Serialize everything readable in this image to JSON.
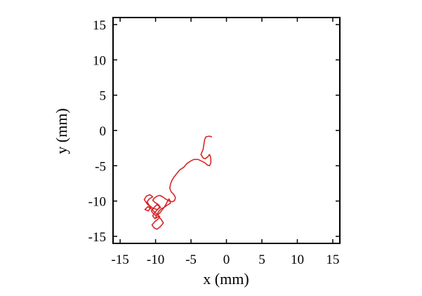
{
  "chart_data": {
    "type": "line",
    "xlabel": "x (mm)",
    "ylabel": "y (mm)",
    "xlim": [
      -16,
      16
    ],
    "ylim": [
      -16,
      16
    ],
    "xticks": [
      -15,
      -10,
      -5,
      0,
      5,
      10,
      15
    ],
    "yticks": [
      -15,
      -10,
      -5,
      0,
      5,
      10,
      15
    ],
    "xtick_labels": [
      "-15",
      "-10",
      "-5",
      "0",
      "5",
      "10",
      "15"
    ],
    "ytick_labels": [
      "-15",
      "-10",
      "-5",
      "0",
      "5",
      "10",
      "15"
    ],
    "grid": false,
    "legend": "none",
    "series": [
      {
        "color": "#d62728",
        "x": [
          -2.1,
          -2.4,
          -2.9,
          -3.1,
          -3.2,
          -3.3,
          -3.6,
          -3.3,
          -3.0,
          -2.6,
          -2.4,
          -2.3,
          -2.2,
          -2.2,
          -2.4,
          -2.7,
          -3.0,
          -3.6,
          -4.0,
          -4.6,
          -5.0,
          -5.6,
          -6.0,
          -6.6,
          -7.0,
          -7.4,
          -7.7,
          -7.9,
          -8.0,
          -7.8,
          -7.4,
          -7.2,
          -7.3,
          -7.6,
          -8.1,
          -8.6,
          -9.0,
          -9.4,
          -9.8,
          -10.2,
          -10.4,
          -10.1,
          -9.6,
          -9.3,
          -9.8,
          -10.4,
          -10.9,
          -11.2,
          -10.9,
          -10.4,
          -10.8,
          -11.3,
          -11.6,
          -11.2,
          -10.7,
          -11.0,
          -11.5,
          -11.1,
          -10.6,
          -10.2,
          -9.8,
          -9.4,
          -9.7,
          -10.1,
          -10.5,
          -10.2,
          -9.8,
          -9.3,
          -8.9,
          -9.2,
          -9.6,
          -10.1,
          -10.4,
          -10.1,
          -9.7,
          -9.4,
          -9.8,
          -10.2,
          -10.6,
          -10.3,
          -9.9,
          -9.4,
          -9.1,
          -8.8,
          -8.5,
          -8.3,
          -8.1,
          -8.0,
          -7.9,
          -8.4,
          -8.8,
          -9.2,
          -9.5,
          -9.8,
          -10.0
        ],
        "y": [
          -0.9,
          -0.8,
          -0.9,
          -1.4,
          -2.1,
          -2.7,
          -3.4,
          -3.9,
          -4.0,
          -3.7,
          -3.4,
          -3.6,
          -4.0,
          -4.6,
          -5.0,
          -4.9,
          -4.6,
          -4.3,
          -4.1,
          -4.1,
          -4.3,
          -4.7,
          -5.2,
          -5.6,
          -6.1,
          -6.6,
          -7.1,
          -7.6,
          -8.2,
          -8.7,
          -9.1,
          -9.5,
          -9.9,
          -10.1,
          -10.0,
          -9.7,
          -9.4,
          -9.2,
          -9.3,
          -9.6,
          -9.9,
          -10.2,
          -10.5,
          -10.9,
          -11.2,
          -11.0,
          -10.6,
          -10.1,
          -9.7,
          -9.4,
          -9.1,
          -9.3,
          -9.8,
          -10.4,
          -10.9,
          -11.4,
          -11.2,
          -10.8,
          -11.1,
          -11.5,
          -11.9,
          -12.2,
          -12.6,
          -12.9,
          -13.4,
          -13.8,
          -14.0,
          -13.6,
          -13.1,
          -12.6,
          -12.2,
          -12.5,
          -12.1,
          -11.6,
          -11.2,
          -10.8,
          -10.5,
          -10.9,
          -11.4,
          -11.8,
          -12.1,
          -11.7,
          -11.3,
          -10.9,
          -10.4,
          -10.0,
          -9.7,
          -9.9,
          -10.3,
          -10.6,
          -10.9,
          -11.1,
          -11.4,
          -11.9,
          -12.4
        ]
      }
    ]
  }
}
